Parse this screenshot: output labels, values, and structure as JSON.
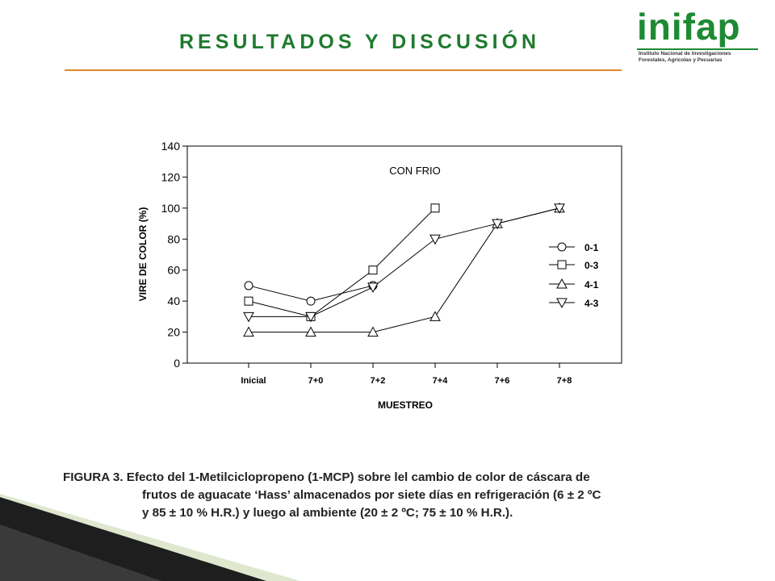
{
  "slide": {
    "title": "RESULTADOS Y DISCUSIÓN",
    "logo": {
      "word": "inifap",
      "subtitle_1": "Instituto Nacional de Investigaciones",
      "subtitle_2": "Forestales, Agrícolas y Pecuarias"
    },
    "caption": {
      "line1": "FIGURA 3. Efecto del 1-Metilciclopropeno (1-MCP) sobre lel cambio de color de cáscara de",
      "line2": "frutos de aguacate ‘Hass’ almacenados por siete días en refrigeración (6 ± 2 ºC",
      "line3": "y 85 ± 10 % H.R.) y luego al ambiente (20 ± 2 ºC; 75 ± 10 % H.R.)."
    },
    "colors": {
      "title": "#1f7a2e",
      "rule": "#e08a2a",
      "logo": "#1e8a34"
    }
  },
  "chart_data": {
    "type": "line",
    "annotation": "CON FRIO",
    "xlabel": "MUESTREO",
    "ylabel": "VIRE DE COLOR (%)",
    "categories": [
      "Inicial",
      "7+0",
      "7+2",
      "7+4",
      "7+6",
      "7+8"
    ],
    "ylim": [
      0,
      140
    ],
    "yticks": [
      0,
      20,
      40,
      60,
      80,
      100,
      120,
      140
    ],
    "legend_position": "right",
    "grid": false,
    "series": [
      {
        "name": "0-1",
        "marker": "circle",
        "values": [
          50,
          40,
          50,
          null,
          null,
          null
        ]
      },
      {
        "name": "0-3",
        "marker": "square",
        "values": [
          40,
          30,
          60,
          100,
          null,
          null
        ]
      },
      {
        "name": "4-1",
        "marker": "triangle-up",
        "values": [
          20,
          20,
          20,
          30,
          90,
          100
        ]
      },
      {
        "name": "4-3",
        "marker": "triangle-down",
        "values": [
          30,
          30,
          49,
          80,
          90,
          100
        ]
      }
    ]
  }
}
